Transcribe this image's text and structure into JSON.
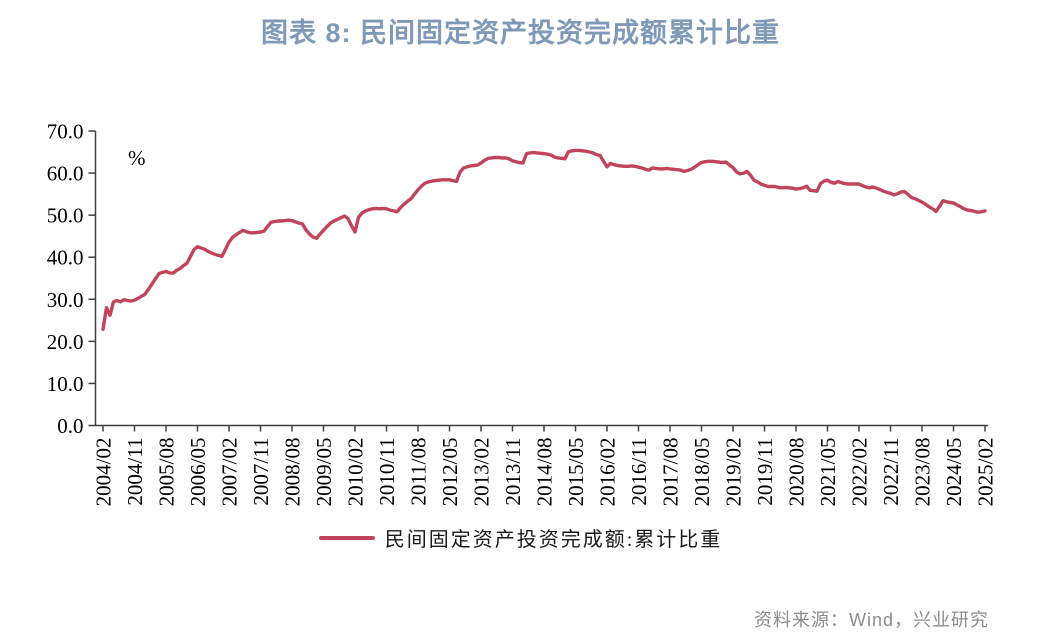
{
  "page": {
    "title": "图表  8: 民间固定资产投资完成额累计比重",
    "source": "资料来源：Wind，兴业研究"
  },
  "legend": {
    "series_label": "民间固定资产投资完成额:累计比重"
  },
  "colors": {
    "title": "#7f9ab8",
    "line": "#c0455c",
    "axis": "#3f3f3f",
    "tick_label": "#000000",
    "source": "#8c8c8c"
  },
  "chart_data": {
    "type": "line",
    "title": "图表  8: 民间固定资产投资完成额累计比重",
    "xlabel": "",
    "ylabel": "%",
    "unit_label": "%",
    "ylim": [
      0,
      70
    ],
    "grid": false,
    "legend_position": "bottom",
    "y_tick_labels": [
      "0.0",
      "10.0",
      "20.0",
      "30.0",
      "40.0",
      "50.0",
      "60.0",
      "70.0"
    ],
    "x_tick_labels": [
      "2004/02",
      "2004/11",
      "2005/08",
      "2006/05",
      "2007/02",
      "2007/11",
      "2008/08",
      "2009/05",
      "2010/02",
      "2010/11",
      "2011/08",
      "2012/05",
      "2013/02",
      "2013/11",
      "2014/08",
      "2015/05",
      "2016/02",
      "2016/11",
      "2017/08",
      "2018/05",
      "2019/02",
      "2019/11",
      "2020/08",
      "2021/05",
      "2022/02",
      "2022/11",
      "2023/08",
      "2024/05",
      "2025/02"
    ],
    "x_tick_every": 9,
    "series": [
      {
        "name": "民间固定资产投资完成额:累计比重",
        "color": "#c0455c",
        "start": "2004-02",
        "frequency": "monthly",
        "values": [
          22.9,
          28.0,
          26.2,
          29.4,
          29.7,
          29.4,
          29.9,
          29.7,
          29.6,
          29.8,
          30.2,
          30.7,
          31.2,
          32.4,
          33.6,
          34.9,
          36.1,
          36.4,
          36.6,
          36.3,
          36.2,
          36.9,
          37.3,
          38.0,
          38.6,
          40.2,
          41.8,
          42.5,
          42.2,
          41.9,
          41.4,
          41.0,
          40.7,
          40.4,
          40.2,
          41.9,
          43.6,
          44.7,
          45.3,
          45.9,
          46.4,
          46.1,
          45.8,
          45.8,
          45.9,
          46.0,
          46.2,
          47.3,
          48.3,
          48.5,
          48.6,
          48.6,
          48.7,
          48.8,
          48.7,
          48.4,
          48.1,
          47.9,
          46.5,
          45.5,
          44.8,
          44.5,
          45.5,
          46.4,
          47.3,
          48.1,
          48.6,
          49.0,
          49.4,
          49.8,
          49.2,
          47.5,
          46.0,
          49.5,
          50.5,
          51.0,
          51.3,
          51.5,
          51.6,
          51.5,
          51.6,
          51.5,
          51.2,
          51.0,
          50.8,
          51.8,
          52.6,
          53.3,
          53.9,
          55.0,
          56.0,
          56.9,
          57.6,
          57.9,
          58.1,
          58.2,
          58.3,
          58.4,
          58.4,
          58.4,
          58.2,
          58.0,
          60.2,
          61.2,
          61.5,
          61.7,
          61.8,
          61.9,
          62.4,
          63.0,
          63.5,
          63.6,
          63.7,
          63.7,
          63.6,
          63.6,
          63.4,
          62.9,
          62.7,
          62.5,
          62.4,
          64.6,
          64.8,
          64.9,
          64.8,
          64.7,
          64.6,
          64.5,
          64.3,
          63.8,
          63.6,
          63.5,
          63.4,
          65.1,
          65.3,
          65.4,
          65.4,
          65.3,
          65.2,
          65.0,
          64.8,
          64.4,
          64.2,
          62.8,
          61.5,
          62.3,
          62.0,
          61.8,
          61.7,
          61.6,
          61.6,
          61.7,
          61.6,
          61.4,
          61.2,
          60.9,
          60.7,
          61.2,
          61.1,
          61.0,
          61.0,
          61.1,
          61.0,
          60.9,
          60.8,
          60.7,
          60.4,
          60.6,
          60.9,
          61.4,
          62.0,
          62.5,
          62.7,
          62.8,
          62.8,
          62.7,
          62.6,
          62.5,
          62.6,
          61.9,
          61.3,
          60.3,
          59.8,
          60.0,
          60.4,
          59.5,
          58.3,
          57.9,
          57.4,
          57.1,
          56.8,
          56.8,
          56.8,
          56.6,
          56.5,
          56.6,
          56.5,
          56.4,
          56.2,
          56.3,
          56.5,
          56.9,
          55.9,
          55.8,
          55.7,
          57.5,
          58.1,
          58.3,
          57.8,
          57.6,
          58.0,
          57.7,
          57.5,
          57.4,
          57.4,
          57.4,
          57.4,
          57.0,
          56.7,
          56.5,
          56.7,
          56.4,
          56.1,
          55.7,
          55.4,
          55.2,
          54.8,
          55.1,
          55.5,
          55.6,
          54.9,
          54.2,
          53.9,
          53.5,
          53.1,
          52.6,
          52.0,
          51.5,
          50.9,
          52.1,
          53.4,
          53.2,
          53.0,
          52.9,
          52.4,
          52.0,
          51.5,
          51.2,
          51.1,
          50.9,
          50.7,
          50.8,
          51.0
        ]
      }
    ]
  }
}
